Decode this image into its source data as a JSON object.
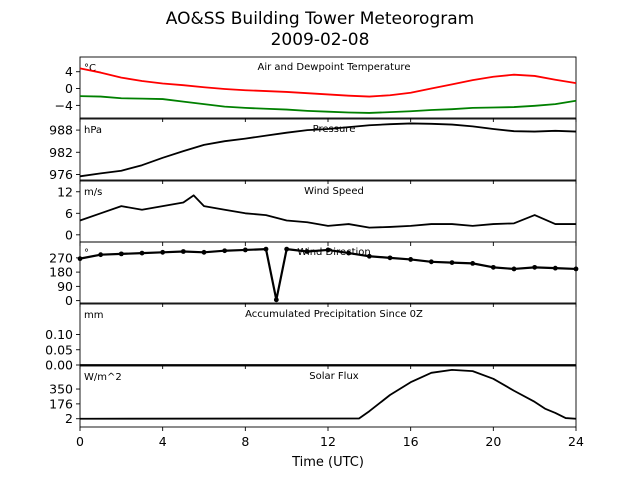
{
  "figure": {
    "title_line1": "AO&SS Building Tower Meteorogram",
    "title_line2": "2009-02-08",
    "xlabel": "Time (UTC)"
  },
  "chart_data": [
    {
      "type": "line",
      "title": "Air and Dewpoint Temperature",
      "unit": "°C",
      "ylim": [
        -7,
        7.5
      ],
      "yticks": [
        4,
        0,
        -4
      ],
      "ytick_labels": [
        "4",
        "0",
        "−4"
      ],
      "xlim": [
        0,
        24
      ],
      "series": [
        {
          "name": "",
          "color": "#ff0000",
          "x": [
            0,
            1,
            2,
            3,
            4,
            5,
            6,
            7,
            8,
            9,
            10,
            11,
            12,
            13,
            14,
            15,
            16,
            17,
            18,
            19,
            20,
            21,
            22,
            23,
            24
          ],
          "values": [
            4.8,
            3.8,
            2.6,
            1.8,
            1.2,
            0.8,
            0.3,
            -0.1,
            -0.4,
            -0.6,
            -0.8,
            -1.1,
            -1.4,
            -1.7,
            -1.9,
            -1.6,
            -1.0,
            0,
            1.0,
            2.0,
            2.8,
            3.3,
            3.0,
            2.1,
            1.3
          ]
        },
        {
          "name": "",
          "color": "#008000",
          "x": [
            0,
            1,
            2,
            3,
            4,
            5,
            6,
            7,
            8,
            9,
            10,
            11,
            12,
            13,
            14,
            15,
            16,
            17,
            18,
            19,
            20,
            21,
            22,
            23,
            24
          ],
          "values": [
            -1.8,
            -1.9,
            -2.3,
            -2.4,
            -2.5,
            -3.1,
            -3.7,
            -4.3,
            -4.6,
            -4.8,
            -5.0,
            -5.3,
            -5.5,
            -5.7,
            -5.8,
            -5.6,
            -5.4,
            -5.1,
            -4.9,
            -4.6,
            -4.5,
            -4.4,
            -4.1,
            -3.7,
            -2.9
          ]
        }
      ]
    },
    {
      "type": "line",
      "title": "Pressure",
      "unit": "hPa",
      "ylim": [
        974.5,
        991
      ],
      "yticks": [
        988,
        982,
        976
      ],
      "ytick_labels": [
        "988",
        "982",
        "976"
      ],
      "xlim": [
        0,
        24
      ],
      "series": [
        {
          "name": "",
          "color": "#000000",
          "x": [
            0,
            1,
            2,
            3,
            4,
            5,
            6,
            7,
            8,
            9,
            10,
            11,
            12,
            13,
            14,
            15,
            16,
            17,
            18,
            19,
            20,
            21,
            22,
            23,
            24
          ],
          "values": [
            975.5,
            976.3,
            977.0,
            978.5,
            980.5,
            982.3,
            984.0,
            985.0,
            985.7,
            986.5,
            987.3,
            988.0,
            988.3,
            988.8,
            989.3,
            989.6,
            989.8,
            989.7,
            989.5,
            989.0,
            988.3,
            987.7,
            987.6,
            987.8,
            987.6
          ]
        }
      ]
    },
    {
      "type": "line",
      "title": "Wind Speed",
      "unit": "m/s",
      "ylim": [
        -2,
        15
      ],
      "yticks": [
        12,
        6,
        0
      ],
      "ytick_labels": [
        "12",
        "6",
        "0"
      ],
      "xlim": [
        0,
        24
      ],
      "series": [
        {
          "name": "",
          "color": "#000000",
          "x": [
            0,
            1,
            2,
            3,
            4,
            5,
            5.5,
            6,
            7,
            8,
            9,
            10,
            11,
            12,
            13,
            14,
            15,
            16,
            17,
            18,
            19,
            20,
            21,
            22,
            23,
            24
          ],
          "values": [
            4,
            6,
            8,
            7,
            8,
            9,
            11,
            8,
            7,
            6,
            5.5,
            4,
            3.5,
            2.5,
            3,
            2,
            2.2,
            2.5,
            3,
            3,
            2.5,
            3,
            3.2,
            5.5,
            3,
            3
          ]
        }
      ]
    },
    {
      "type": "scatter",
      "title": "Wind Direction",
      "unit": "°",
      "ylim": [
        -15,
        370
      ],
      "yticks": [
        270,
        180,
        90,
        0
      ],
      "ytick_labels": [
        "270",
        "180",
        "90",
        "0"
      ],
      "xlim": [
        0,
        24
      ],
      "series": [
        {
          "name": "",
          "color": "#000000",
          "x": [
            0,
            1,
            2,
            3,
            4,
            5,
            6,
            7,
            8,
            9,
            9.5,
            10,
            11,
            12,
            13,
            14,
            15,
            16,
            17,
            18,
            19,
            20,
            21,
            22,
            23,
            24
          ],
          "values": [
            265,
            290,
            295,
            300,
            305,
            310,
            305,
            315,
            320,
            325,
            5,
            325,
            310,
            320,
            300,
            280,
            270,
            260,
            245,
            240,
            235,
            210,
            200,
            210,
            205,
            200
          ]
        }
      ]
    },
    {
      "type": "line",
      "title": "Accumulated Precipitation Since 0Z",
      "unit": "mm",
      "ylim": [
        0,
        0.2
      ],
      "yticks": [
        0.1,
        0.05,
        0.0
      ],
      "ytick_labels": [
        "0.10",
        "0.05",
        "0.00"
      ],
      "xlim": [
        0,
        24
      ],
      "series": [
        {
          "name": "",
          "color": "#000000",
          "x": [
            0,
            24
          ],
          "values": [
            0,
            0
          ]
        }
      ]
    },
    {
      "type": "line",
      "title": "Solar Flux",
      "unit": "W/m^2",
      "ylim": [
        -95,
        620
      ],
      "yticks": [
        350,
        176,
        2
      ],
      "ytick_labels": [
        "350",
        "176",
        "2"
      ],
      "xlim": [
        0,
        24
      ],
      "series": [
        {
          "name": "",
          "color": "#000000",
          "x": [
            0,
            13.5,
            14,
            15,
            16,
            17,
            18,
            19,
            20,
            21,
            22,
            22.5,
            23,
            23.5,
            24
          ],
          "values": [
            2,
            5,
            90,
            280,
            430,
            540,
            575,
            560,
            470,
            330,
            200,
            120,
            70,
            10,
            2
          ]
        }
      ]
    }
  ],
  "xaxis": {
    "ticks": [
      0,
      4,
      8,
      12,
      16,
      20,
      24
    ],
    "tick_labels": [
      "0",
      "4",
      "8",
      "12",
      "16",
      "20",
      "24"
    ]
  }
}
